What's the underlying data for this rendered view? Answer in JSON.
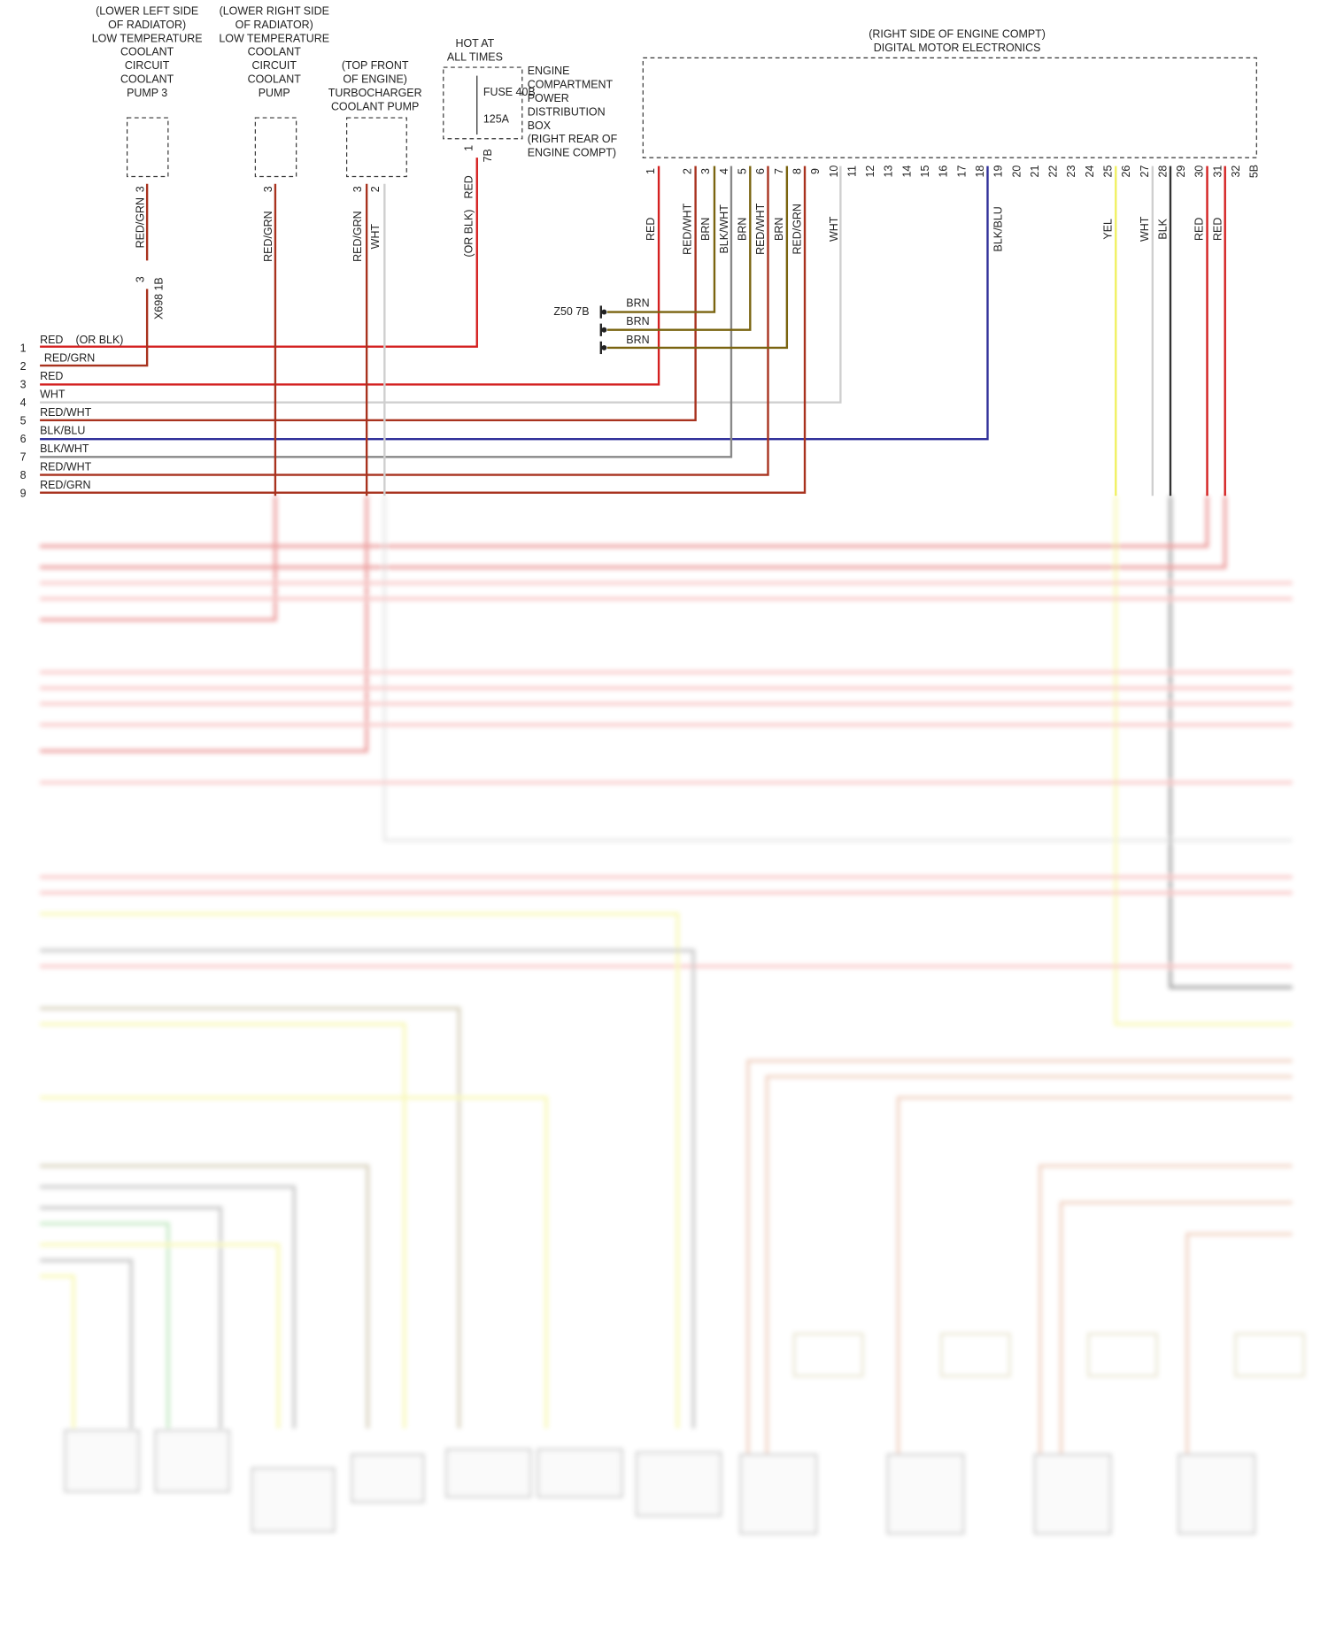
{
  "pump_left": {
    "label": [
      "(LOWER LEFT SIDE",
      "OF RADIATOR)",
      "LOW TEMPERATURE",
      "COOLANT",
      "CIRCUIT",
      "COOLANT",
      "PUMP 3"
    ],
    "pin": "3",
    "wire": "RED/GRN",
    "connector_pin": "3",
    "connector": "X698 1B"
  },
  "pump_right": {
    "label": [
      "(LOWER RIGHT SIDE",
      "OF RADIATOR)",
      "LOW TEMPERATURE",
      "COOLANT",
      "CIRCUIT",
      "COOLANT",
      "PUMP"
    ],
    "pin": "3",
    "wire": "RED/GRN"
  },
  "turbo_pump": {
    "label": [
      "(TOP FRONT",
      "OF ENGINE)",
      "TURBOCHARGER",
      "COOLANT PUMP"
    ],
    "pins": [
      "3",
      "2"
    ],
    "wires": [
      "RED/GRN",
      "WHT"
    ]
  },
  "fuse_box": {
    "note": [
      "HOT AT",
      "ALL TIMES"
    ],
    "fuse": "FUSE 40B",
    "rating": "125A",
    "label": [
      "ENGINE",
      "COMPARTMENT",
      "POWER",
      "DISTRIBUTION",
      "BOX",
      "(RIGHT REAR OF",
      "ENGINE COMPT)"
    ],
    "pin": "1",
    "connector": "7B",
    "wire": "RED",
    "wire_alt": "(OR BLK)"
  },
  "dme": {
    "label": [
      "(RIGHT SIDE OF ENGINE COMPT)",
      "DIGITAL MOTOR ELECTRONICS"
    ],
    "pins": [
      "1",
      "2",
      "3",
      "4",
      "5",
      "6",
      "7",
      "8",
      "9",
      "10",
      "11",
      "12",
      "13",
      "14",
      "15",
      "16",
      "17",
      "18",
      "19",
      "20",
      "21",
      "22",
      "23",
      "24",
      "25",
      "26",
      "27",
      "28",
      "29",
      "30",
      "31",
      "32",
      "5B"
    ],
    "wires": [
      "RED",
      "RED/WHT",
      "BRN",
      "BLK/WHT",
      "BRN",
      "RED/WHT",
      "BRN",
      "RED/GRN",
      null,
      "WHT",
      null,
      null,
      null,
      null,
      null,
      null,
      null,
      null,
      "BLK/BLU",
      null,
      null,
      null,
      null,
      null,
      "YEL",
      null,
      "WHT",
      "BLK",
      null,
      "RED",
      "RED",
      null,
      null
    ]
  },
  "ground": {
    "label": "Z50 7B",
    "wires": [
      "BRN",
      "BRN",
      "BRN"
    ]
  },
  "rows": {
    "numbers": [
      "1",
      "2",
      "3",
      "4",
      "5",
      "6",
      "7",
      "8",
      "9"
    ],
    "wires": [
      "RED",
      "RED/GRN",
      "RED",
      "WHT",
      "RED/WHT",
      "BLK/BLU",
      "BLK/WHT",
      "RED/WHT",
      "RED/GRN"
    ],
    "alt": "(OR BLK)"
  }
}
